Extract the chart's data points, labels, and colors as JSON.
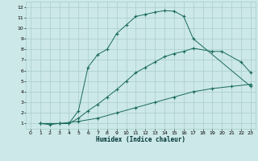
{
  "xlabel": "Humidex (Indice chaleur)",
  "bg_color": "#cce8e8",
  "grid_color": "#aacccc",
  "line_color": "#1a6b5a",
  "xlim": [
    -0.5,
    23.5
  ],
  "ylim": [
    0.5,
    12.5
  ],
  "xticks": [
    0,
    1,
    2,
    3,
    4,
    5,
    6,
    7,
    8,
    9,
    10,
    11,
    12,
    13,
    14,
    15,
    16,
    17,
    18,
    19,
    20,
    21,
    22,
    23
  ],
  "yticks": [
    1,
    2,
    3,
    4,
    5,
    6,
    7,
    8,
    9,
    10,
    11,
    12
  ],
  "line1_x": [
    1,
    2,
    3,
    4,
    5,
    6,
    7,
    8,
    9,
    10,
    11,
    12,
    13,
    14,
    15,
    16,
    17,
    23
  ],
  "line1_y": [
    1,
    0.9,
    1,
    1,
    2.2,
    6.3,
    7.5,
    8.0,
    9.5,
    10.3,
    11.1,
    11.3,
    11.5,
    11.65,
    11.6,
    11.1,
    9.0,
    4.5
  ],
  "line2_x": [
    1,
    3,
    4,
    5,
    6,
    7,
    8,
    9,
    10,
    11,
    12,
    13,
    14,
    15,
    16,
    17,
    19,
    20,
    22,
    23
  ],
  "line2_y": [
    1,
    1.0,
    1.0,
    1.5,
    2.2,
    2.8,
    3.5,
    4.2,
    5.0,
    5.8,
    6.3,
    6.8,
    7.3,
    7.6,
    7.8,
    8.1,
    7.8,
    7.8,
    6.8,
    5.8
  ],
  "line3_x": [
    1,
    3,
    5,
    7,
    9,
    11,
    13,
    15,
    17,
    19,
    21,
    23
  ],
  "line3_y": [
    1,
    1.0,
    1.2,
    1.5,
    2.0,
    2.5,
    3.0,
    3.5,
    4.0,
    4.3,
    4.5,
    4.7
  ]
}
